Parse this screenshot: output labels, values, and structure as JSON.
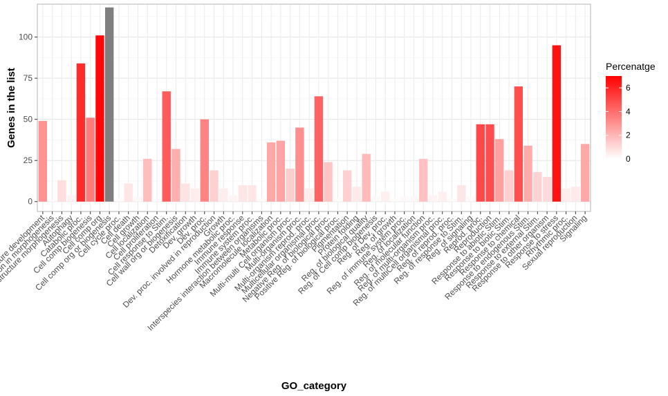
{
  "chart_data": {
    "type": "bar",
    "xlabel": "GO_category",
    "ylabel": "Genes in the list",
    "ylim": [
      -6,
      120
    ],
    "yticks": [
      0,
      25,
      50,
      75,
      100
    ],
    "grid": true,
    "legend": {
      "title": "Percenatge",
      "placement": "right",
      "range": [
        0,
        7
      ],
      "ticks": [
        0,
        2,
        4,
        6
      ],
      "low_color": "#ffffff",
      "high_color": "#ff0000",
      "na_color": "#7f7f7f"
    },
    "categories": [
      "Anatomical structure development",
      "Anatomical structure formation in morphogenesis",
      "Anatomical structure morphogenesis",
      "Autophagy",
      "Catabolic proc.",
      "Cell comp biogenesis",
      "Cell comp org",
      "Cell comp org or biogenesis",
      "Cell cycle proc.",
      "Cell death",
      "Cell growth",
      "Cell localization",
      "Cell proliferation",
      "Cell response to Stim.",
      "Cell wall org or biogenesis",
      "Detoxification",
      "Dev. growth",
      "Dev. proc.",
      "Dev. proc. involved in reproduction",
      "Growth",
      "Hormone metabolic proc.",
      "Immune response",
      "Immune system proc.",
      "Interspecies interaction between organisms",
      "Macromolecule localization",
      "Metabolic proc.",
      "Multi-multi Cell organism proc.",
      "Multi-organism proc.",
      "Multi-organism reprod. proc.",
      "Multicellular organismal proc.",
      "Negative Reg. of biological proc.",
      "Positive Reg. of biological proc.",
      "Pigmentation",
      "Protein folding",
      "Reg. of biological quality",
      "Reg. of Cell comp biogenesis",
      "Reg. of Dev. proc.",
      "Reg. of growth",
      "Reg. of immune system proc.",
      "Reg. of localization",
      "Reg. of molecular function",
      "Reg. of multi-organism proc.",
      "Reg. of multiCell organismal proc.",
      "Reg. of reprod. proc.",
      "Reg. of response to Stim.",
      "Reg. of signaling",
      "Reprod. proc.",
      "Reproduction",
      "Response to abiotic Stim.",
      "Response to biotic Stim.",
      "Response to chemical",
      "Response to endogenous Stim.",
      "Response to external Stim.",
      "Response to other organism",
      "Response to stress",
      "Rhythmic proc.",
      "Sexual reproduction",
      "Signaling"
    ],
    "values": [
      49,
      1,
      13,
      4,
      84,
      51,
      101,
      118,
      2,
      11,
      3,
      26,
      2,
      67,
      32,
      11,
      8,
      50,
      19,
      8,
      4,
      10,
      10,
      2,
      36,
      37,
      20,
      45,
      8,
      64,
      24,
      2,
      19,
      9,
      29,
      3,
      6,
      2,
      3,
      3,
      26,
      4,
      6,
      2,
      10,
      3,
      47,
      47,
      38,
      19,
      70,
      34,
      18,
      15,
      95,
      8,
      9,
      35
    ],
    "percentage": [
      3.0,
      0.1,
      0.9,
      0.3,
      5.8,
      3.6,
      6.8,
      null,
      0.1,
      0.7,
      0.2,
      1.8,
      0.1,
      4.5,
      2.2,
      0.8,
      0.5,
      3.4,
      1.3,
      0.5,
      0.3,
      0.7,
      0.7,
      0.1,
      2.4,
      2.5,
      1.4,
      3.1,
      0.5,
      4.3,
      1.6,
      0.1,
      1.3,
      0.6,
      1.9,
      0.2,
      0.4,
      0.1,
      0.2,
      0.2,
      1.7,
      0.3,
      0.4,
      0.1,
      0.7,
      0.2,
      5.0,
      4.9,
      2.6,
      1.3,
      4.8,
      2.3,
      1.2,
      1.0,
      6.5,
      0.5,
      0.6,
      2.4
    ]
  }
}
